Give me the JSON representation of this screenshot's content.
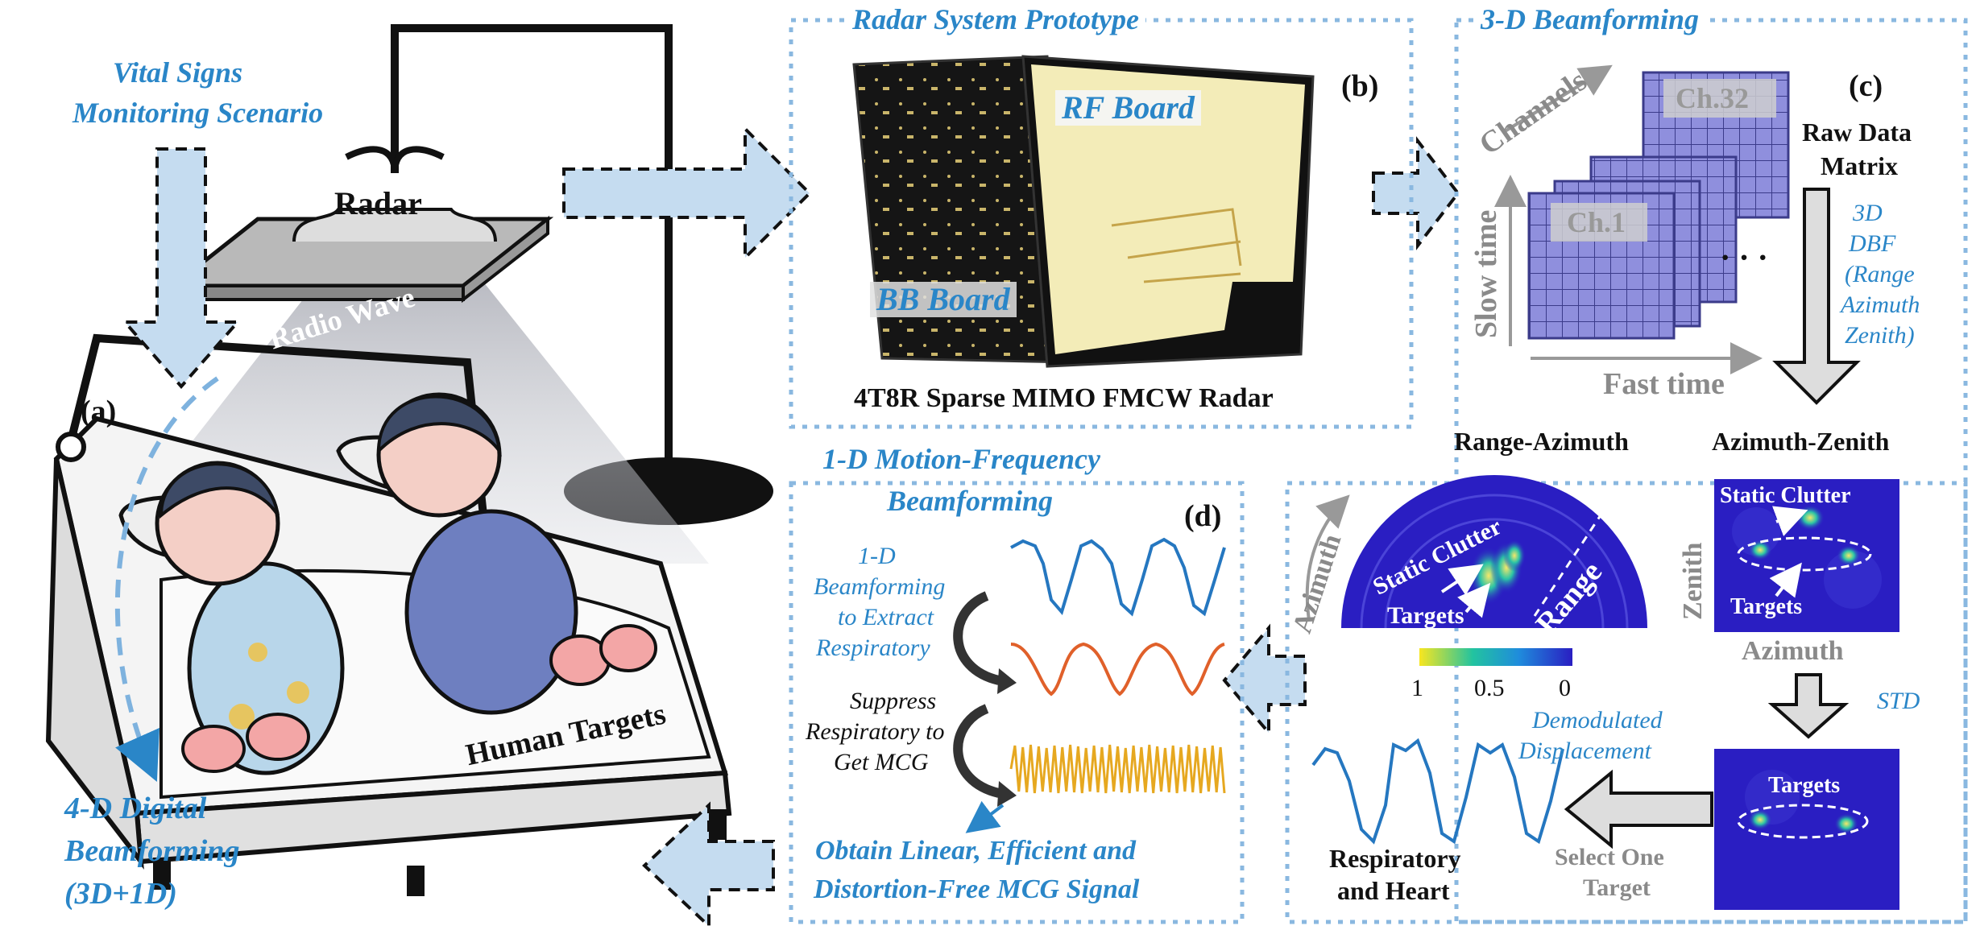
{
  "panel_a": {
    "title_line1": "Vital Signs",
    "title_line2": "Monitoring Scenario",
    "label": "(a)",
    "radar": "Radar",
    "radio_wave": "Radio Wave",
    "human_targets": "Human Targets",
    "bottom_line1": "4-D Digital",
    "bottom_line2": "Beamforming",
    "bottom_line3": "(3D+1D)"
  },
  "panel_b": {
    "title": "Radar System Prototype",
    "label": "(b)",
    "rf_board": "RF Board",
    "bb_board": "BB Board",
    "caption": "4T8R Sparse MIMO FMCW Radar"
  },
  "panel_c": {
    "title": "3-D Beamforming",
    "label": "(c)",
    "channels": "Channels",
    "ch32": "Ch.32",
    "ch1": "Ch.1",
    "dots": "· · ·",
    "slow_time": "Slow time",
    "fast_time": "Fast time",
    "raw_line1": "Raw Data",
    "raw_line2": "Matrix",
    "dbf_lines": [
      "3D",
      "DBF",
      "(Range",
      "Azimuth",
      "Zenith)"
    ],
    "range_azimuth": "Range-Azimuth",
    "azimuth_zenith": "Azimuth-Zenith",
    "azimuth_axis": "Azimuth",
    "range_axis": "Range",
    "static_clutter": "Static Clutter",
    "targets": "Targets",
    "zenith_axis": "Zenith",
    "colorbar_ticks": [
      "1",
      "0.5",
      "0"
    ],
    "std": "STD",
    "demod_line1": "Demodulated",
    "demod_line2": "Displacement",
    "select_line1": "Select One",
    "select_line2": "Target",
    "resp_line1": "Respiratory",
    "resp_line2": "and Heart"
  },
  "panel_d": {
    "title_line1": "1-D Motion-Frequency",
    "title_line2": "Beamforming",
    "label": "(d)",
    "extract_lines": [
      "1-D",
      "Beamforming",
      "to Extract",
      "Respiratory"
    ],
    "suppress_lines": [
      "Suppress",
      "Respiratory to",
      "Get MCG"
    ],
    "obtain_line1": "Obtain Linear, Efficient and",
    "obtain_line2": "Distortion-Free MCG Signal"
  },
  "colors": {
    "accent_blue": "#2a86c8",
    "arrow_fill": "#c5dcf0",
    "frame": "#8ab8e0",
    "matrix": "#8f8fdd",
    "heatmap_bg": "#2a1ec2",
    "resp_wave": "#2577c0",
    "filtered_wave": "#e0602a",
    "mcg_wave": "#e6a820"
  }
}
